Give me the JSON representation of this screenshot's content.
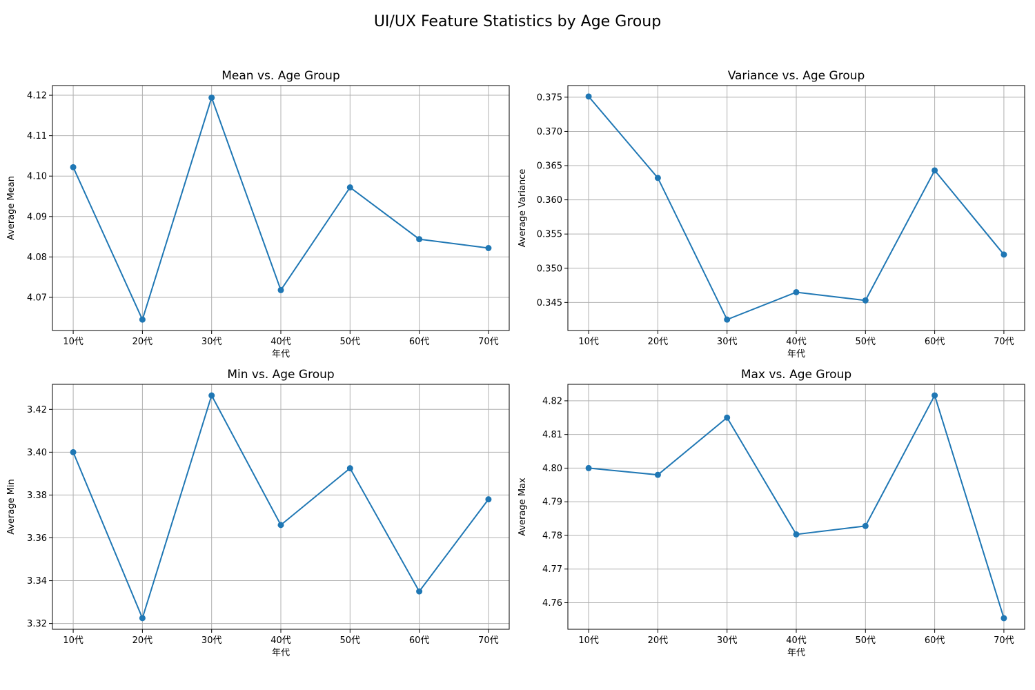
{
  "figure": {
    "title": "UI/UX Feature Statistics by Age Group"
  },
  "colors": {
    "series": "#1f77b4",
    "grid": "#b0b0b0",
    "axis": "#000000",
    "background": "#ffffff"
  },
  "chart_data": [
    {
      "type": "line",
      "title": "Mean vs. Age Group",
      "xlabel": "年代",
      "ylabel": "Average Mean",
      "categories": [
        "10代",
        "20代",
        "30代",
        "40代",
        "50代",
        "60代",
        "70代"
      ],
      "values": [
        4.1022,
        4.0645,
        4.1194,
        4.0718,
        4.0972,
        4.0844,
        4.0822
      ],
      "ylim": [
        4.0618,
        4.1224
      ],
      "yticks": [
        4.07,
        4.08,
        4.09,
        4.1,
        4.11,
        4.12
      ],
      "ytick_labels": [
        "4.07",
        "4.08",
        "4.09",
        "4.10",
        "4.11",
        "4.12"
      ],
      "grid": true,
      "marker": "circle"
    },
    {
      "type": "line",
      "title": "Variance vs. Age Group",
      "xlabel": "年代",
      "ylabel": "Average Variance",
      "categories": [
        "10代",
        "20代",
        "30代",
        "40代",
        "50代",
        "60代",
        "70代"
      ],
      "values": [
        0.3751,
        0.3632,
        0.3425,
        0.3465,
        0.3453,
        0.3643,
        0.352
      ],
      "ylim": [
        0.3409,
        0.3767
      ],
      "yticks": [
        0.345,
        0.35,
        0.355,
        0.36,
        0.365,
        0.37,
        0.375
      ],
      "ytick_labels": [
        "0.345",
        "0.350",
        "0.355",
        "0.360",
        "0.365",
        "0.370",
        "0.375"
      ],
      "grid": true,
      "marker": "circle"
    },
    {
      "type": "line",
      "title": "Min vs. Age Group",
      "xlabel": "年代",
      "ylabel": "Average Min",
      "categories": [
        "10代",
        "20代",
        "30代",
        "40代",
        "50代",
        "60代",
        "70代"
      ],
      "values": [
        3.4,
        3.3225,
        3.4265,
        3.366,
        3.3925,
        3.335,
        3.378
      ],
      "ylim": [
        3.3173,
        3.4317
      ],
      "yticks": [
        3.32,
        3.34,
        3.36,
        3.38,
        3.4,
        3.42
      ],
      "ytick_labels": [
        "3.32",
        "3.34",
        "3.36",
        "3.38",
        "3.40",
        "3.42"
      ],
      "grid": true,
      "marker": "circle"
    },
    {
      "type": "line",
      "title": "Max vs. Age Group",
      "xlabel": "年代",
      "ylabel": "Average Max",
      "categories": [
        "10代",
        "20代",
        "30代",
        "40代",
        "50代",
        "60代",
        "70代"
      ],
      "values": [
        4.8,
        4.798,
        4.815,
        4.7803,
        4.7828,
        4.8216,
        4.7554
      ],
      "ylim": [
        4.7521,
        4.8249
      ],
      "yticks": [
        4.76,
        4.77,
        4.78,
        4.79,
        4.8,
        4.81,
        4.82
      ],
      "ytick_labels": [
        "4.76",
        "4.77",
        "4.78",
        "4.79",
        "4.80",
        "4.81",
        "4.82"
      ],
      "grid": true,
      "marker": "circle"
    }
  ]
}
